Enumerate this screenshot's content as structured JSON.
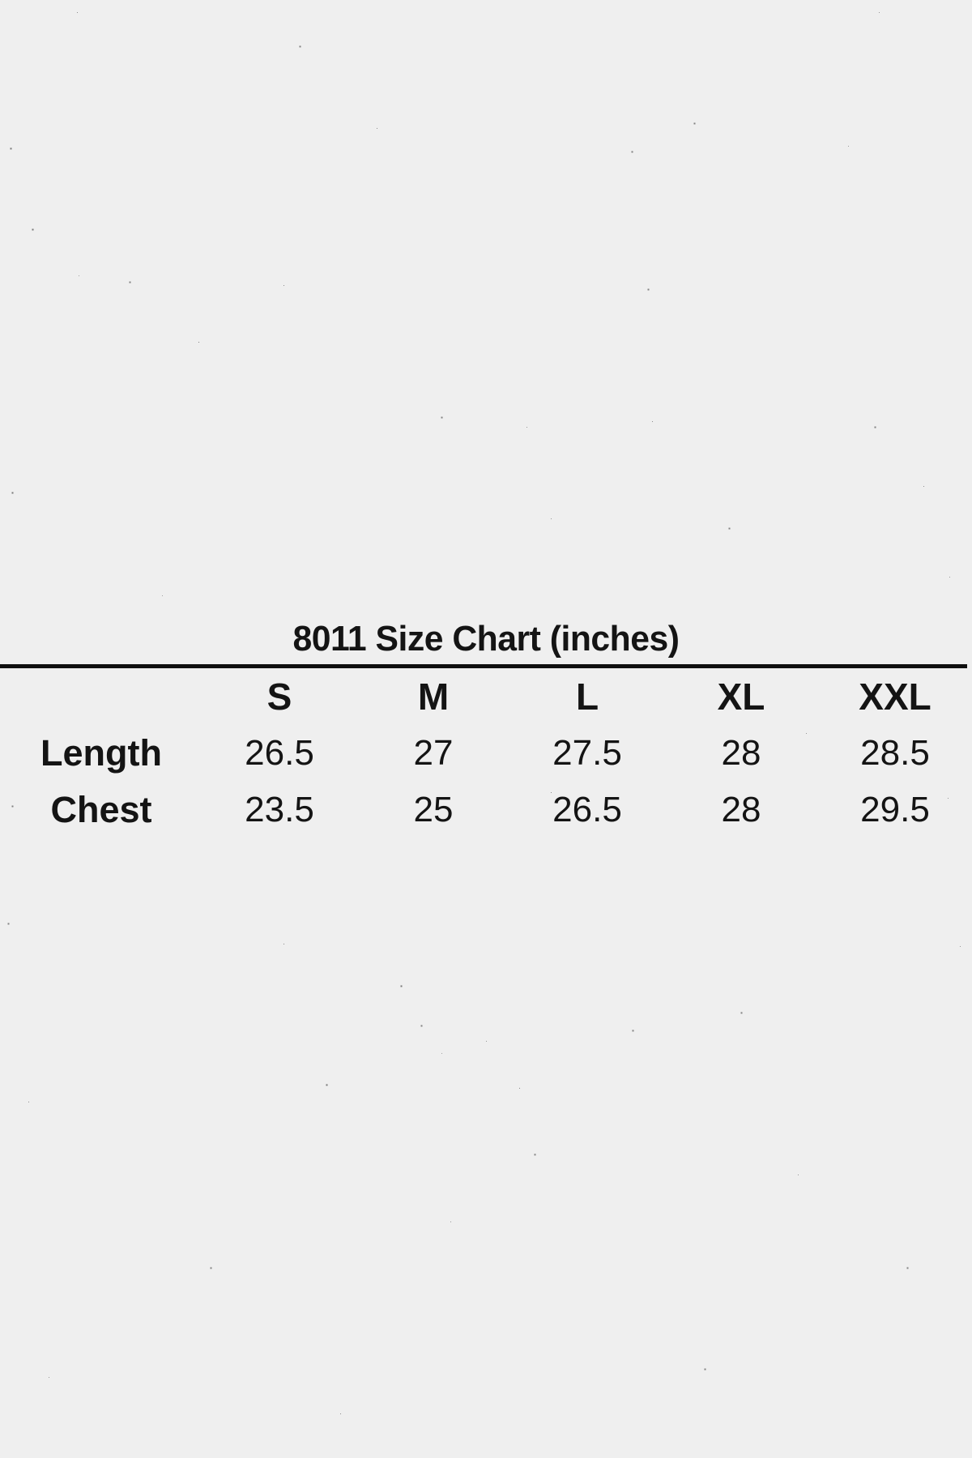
{
  "page": {
    "background_color": "#efefef",
    "text_color": "#141414",
    "divider_color": "#0f0f0f"
  },
  "size_chart": {
    "title": "8011 Size Chart (inches)",
    "column_headers": [
      "S",
      "M",
      "L",
      "XL",
      "XXL"
    ],
    "rows": [
      {
        "label": "Length",
        "values": [
          "26.5",
          "27",
          "27.5",
          "28",
          "28.5"
        ]
      },
      {
        "label": "Chest",
        "values": [
          "23.5",
          "25",
          "26.5",
          "28",
          "29.5"
        ]
      }
    ]
  },
  "chart_data": {
    "type": "table",
    "title": "8011 Size Chart (inches)",
    "units": "inches",
    "columns": [
      "S",
      "M",
      "L",
      "XL",
      "XXL"
    ],
    "rows": [
      {
        "label": "Length",
        "values": [
          26.5,
          27,
          27.5,
          28,
          28.5
        ]
      },
      {
        "label": "Chest",
        "values": [
          23.5,
          25,
          26.5,
          28,
          29.5
        ]
      }
    ]
  }
}
